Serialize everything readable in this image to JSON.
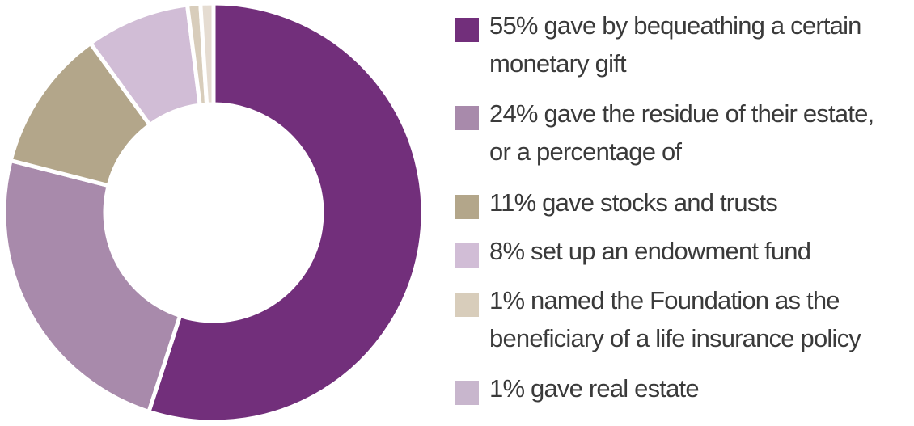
{
  "chart_data": {
    "type": "pie",
    "variant": "donut",
    "categories": [
      "55% gave by bequeathing a certain monetary gift",
      "24% gave the residue of their estate, or a percentage of",
      "11% gave stocks and trusts",
      "8% set up an endowment fund",
      "1% named the Foundation as the beneficiary of a life insurance policy",
      "1% gave real estate"
    ],
    "values": [
      55,
      24,
      11,
      8,
      1,
      1
    ],
    "colors": [
      "#722f7b",
      "#a88aab",
      "#b3a68a",
      "#d1bdd6",
      "#d8cdbb",
      "#e5dcd1"
    ],
    "legend_position": "right",
    "title": "",
    "subtitle": ""
  },
  "legend": [
    {
      "text": "55% gave by bequeathing a certain\nmonetary gift",
      "color": "#722f7b"
    },
    {
      "text": "24% gave the residue of their estate,\nor a percentage of",
      "color": "#a88aab"
    },
    {
      "text": "11% gave stocks and trusts",
      "color": "#b3a68a"
    },
    {
      "text": "8% set up an endowment fund",
      "color": "#d1bdd6"
    },
    {
      "text": "1% named the Foundation as the\nbeneficiary of a life insurance policy",
      "color": "#d8cdbb"
    },
    {
      "text": "1% gave real estate",
      "color": "#c8b6cd"
    }
  ]
}
